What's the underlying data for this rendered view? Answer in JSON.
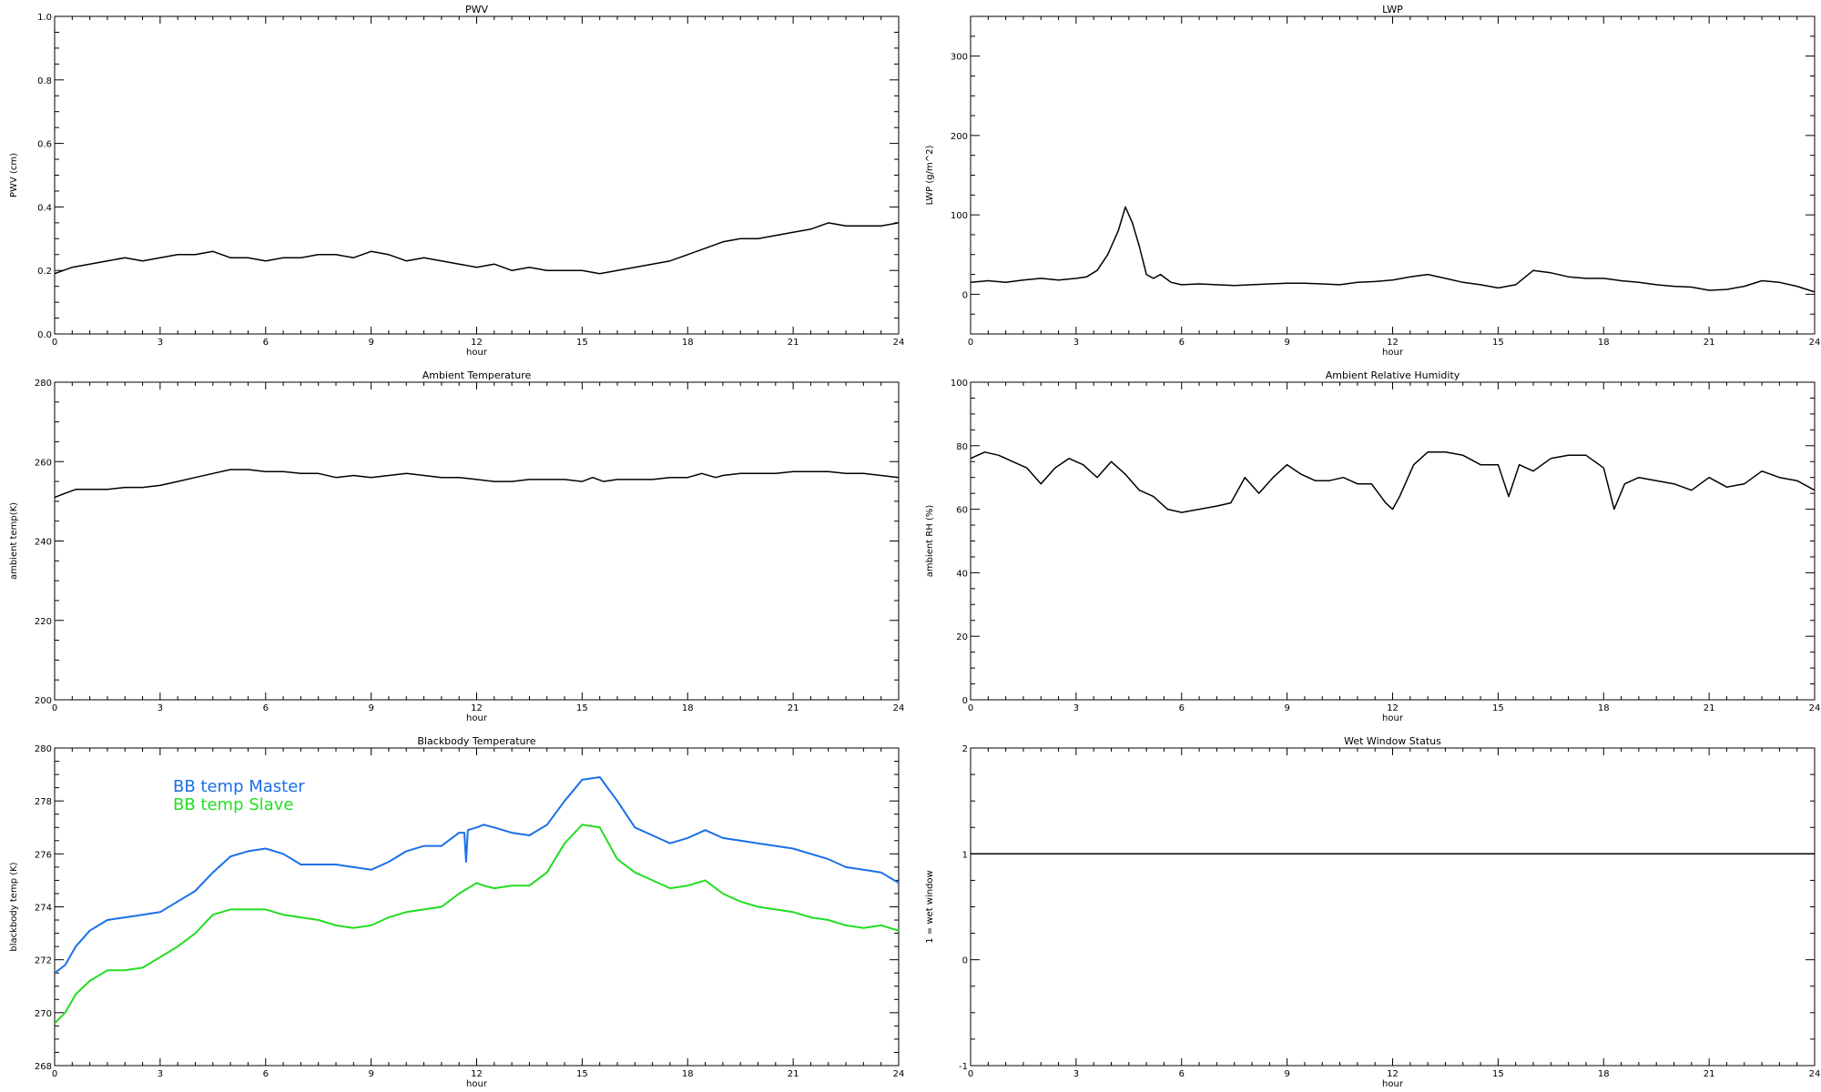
{
  "chart_data": [
    {
      "id": "pwv",
      "type": "line",
      "title": "PWV",
      "xlabel": "hour",
      "ylabel": "PWV (cm)",
      "xlim": [
        0,
        24
      ],
      "ylim": [
        0.0,
        1.0
      ],
      "xticks": [
        "0",
        "3",
        "6",
        "9",
        "12",
        "15",
        "18",
        "21",
        "24"
      ],
      "yticks": [
        "0.0",
        "0.2",
        "0.4",
        "0.6",
        "0.8",
        "1.0"
      ],
      "series": [
        {
          "color": "#000000",
          "x": [
            0,
            0.5,
            1,
            1.5,
            2,
            2.5,
            3,
            3.5,
            4,
            4.5,
            5,
            5.5,
            6,
            6.5,
            7,
            7.5,
            8,
            8.5,
            9,
            9.5,
            10,
            10.5,
            11,
            11.5,
            12,
            12.5,
            13,
            13.5,
            14,
            14.5,
            15,
            15.5,
            16,
            16.5,
            17,
            17.5,
            18,
            18.5,
            19,
            19.5,
            20,
            20.5,
            21,
            21.5,
            22,
            22.5,
            23,
            23.5,
            24
          ],
          "y": [
            0.19,
            0.21,
            0.22,
            0.23,
            0.24,
            0.23,
            0.24,
            0.25,
            0.25,
            0.26,
            0.24,
            0.24,
            0.23,
            0.24,
            0.24,
            0.25,
            0.25,
            0.24,
            0.26,
            0.25,
            0.23,
            0.24,
            0.23,
            0.22,
            0.21,
            0.22,
            0.2,
            0.21,
            0.2,
            0.2,
            0.2,
            0.19,
            0.2,
            0.21,
            0.22,
            0.23,
            0.25,
            0.27,
            0.29,
            0.3,
            0.3,
            0.31,
            0.32,
            0.33,
            0.35,
            0.34,
            0.34,
            0.34,
            0.35
          ]
        }
      ]
    },
    {
      "id": "lwp",
      "type": "line",
      "title": "LWP",
      "xlabel": "hour",
      "ylabel": "LWP (g/m^2)",
      "xlim": [
        0,
        24
      ],
      "ylim": [
        -50,
        350
      ],
      "xticks": [
        "0",
        "3",
        "6",
        "9",
        "12",
        "15",
        "18",
        "21",
        "24"
      ],
      "yticks": [
        "0",
        "100",
        "200",
        "300"
      ],
      "series": [
        {
          "color": "#000000",
          "x": [
            0,
            0.5,
            1,
            1.5,
            2,
            2.5,
            3,
            3.3,
            3.6,
            3.9,
            4.2,
            4.4,
            4.6,
            4.8,
            5.0,
            5.2,
            5.4,
            5.7,
            6,
            6.5,
            7,
            7.5,
            8,
            8.5,
            9,
            9.5,
            10,
            10.5,
            11,
            11.5,
            12,
            12.5,
            13,
            13.5,
            14,
            14.5,
            15,
            15.5,
            16,
            16.5,
            17,
            17.5,
            18,
            18.5,
            19,
            19.5,
            20,
            20.5,
            21,
            21.5,
            22,
            22.5,
            23,
            23.5,
            24
          ],
          "y": [
            15,
            17,
            15,
            18,
            20,
            18,
            20,
            22,
            30,
            50,
            80,
            110,
            90,
            60,
            25,
            20,
            25,
            15,
            12,
            13,
            12,
            11,
            12,
            13,
            14,
            14,
            13,
            12,
            15,
            16,
            18,
            22,
            25,
            20,
            15,
            12,
            8,
            12,
            30,
            27,
            22,
            20,
            20,
            17,
            15,
            12,
            10,
            9,
            5,
            6,
            10,
            17,
            15,
            10,
            3
          ]
        }
      ]
    },
    {
      "id": "ambient-temp",
      "type": "line",
      "title": "Ambient Temperature",
      "xlabel": "hour",
      "ylabel": "ambient temp(K)",
      "xlim": [
        0,
        24
      ],
      "ylim": [
        200,
        280
      ],
      "xticks": [
        "0",
        "3",
        "6",
        "9",
        "12",
        "15",
        "18",
        "21",
        "24"
      ],
      "yticks": [
        "200",
        "220",
        "240",
        "260",
        "280"
      ],
      "series": [
        {
          "color": "#000000",
          "x": [
            0,
            0.3,
            0.6,
            1,
            1.5,
            2,
            2.5,
            3,
            3.5,
            4,
            4.5,
            5,
            5.5,
            6,
            6.5,
            7,
            7.5,
            8,
            8.5,
            9,
            9.5,
            10,
            10.5,
            11,
            11.5,
            12,
            12.5,
            13,
            13.5,
            14,
            14.5,
            15,
            15.3,
            15.6,
            16,
            16.5,
            17,
            17.5,
            18,
            18.4,
            18.8,
            19,
            19.5,
            20,
            20.5,
            21,
            21.5,
            22,
            22.5,
            23,
            23.5,
            24
          ],
          "y": [
            251,
            252,
            253,
            253,
            253,
            253.5,
            253.5,
            254,
            255,
            256,
            257,
            258,
            258,
            257.5,
            257.5,
            257,
            257,
            256,
            256.5,
            256,
            256.5,
            257,
            256.5,
            256,
            256,
            255.5,
            255,
            255,
            255.5,
            255.5,
            255.5,
            255,
            256,
            255,
            255.5,
            255.5,
            255.5,
            256,
            256,
            257,
            256,
            256.5,
            257,
            257,
            257,
            257.5,
            257.5,
            257.5,
            257,
            257,
            256.5,
            256
          ]
        }
      ]
    },
    {
      "id": "ambient-rh",
      "type": "line",
      "title": "Ambient Relative Humidity",
      "xlabel": "hour",
      "ylabel": "ambient RH (%)",
      "xlim": [
        0,
        24
      ],
      "ylim": [
        0,
        100
      ],
      "xticks": [
        "0",
        "3",
        "6",
        "9",
        "12",
        "15",
        "18",
        "21",
        "24"
      ],
      "yticks": [
        "0",
        "20",
        "40",
        "60",
        "80",
        "100"
      ],
      "series": [
        {
          "color": "#000000",
          "x": [
            0,
            0.4,
            0.8,
            1.2,
            1.6,
            2.0,
            2.4,
            2.8,
            3.2,
            3.6,
            4.0,
            4.4,
            4.8,
            5.2,
            5.6,
            6.0,
            6.5,
            7.0,
            7.4,
            7.8,
            8.2,
            8.6,
            9.0,
            9.4,
            9.8,
            10.2,
            10.6,
            11.0,
            11.4,
            11.8,
            12.0,
            12.2,
            12.6,
            13.0,
            13.5,
            14.0,
            14.5,
            15.0,
            15.3,
            15.6,
            16.0,
            16.5,
            17.0,
            17.5,
            18.0,
            18.3,
            18.6,
            19.0,
            19.5,
            20.0,
            20.5,
            21.0,
            21.5,
            22.0,
            22.5,
            23.0,
            23.5,
            24.0
          ],
          "y": [
            76,
            78,
            77,
            75,
            73,
            68,
            73,
            76,
            74,
            70,
            75,
            71,
            66,
            64,
            60,
            59,
            60,
            61,
            62,
            70,
            65,
            70,
            74,
            71,
            69,
            69,
            70,
            68,
            68,
            62,
            60,
            64,
            74,
            78,
            78,
            77,
            74,
            74,
            64,
            74,
            72,
            76,
            77,
            77,
            73,
            60,
            68,
            70,
            69,
            68,
            66,
            70,
            67,
            68,
            72,
            70,
            69,
            66
          ]
        }
      ]
    },
    {
      "id": "bb-temp",
      "type": "line",
      "title": "Blackbody Temperature",
      "xlabel": "hour",
      "ylabel": "blackbody temp (K)",
      "xlim": [
        0,
        24
      ],
      "ylim": [
        268,
        280
      ],
      "xticks": [
        "0",
        "3",
        "6",
        "9",
        "12",
        "15",
        "18",
        "21",
        "24"
      ],
      "yticks": [
        "268",
        "270",
        "272",
        "274",
        "276",
        "278",
        "280"
      ],
      "legend": {
        "placement": "top-left"
      },
      "series": [
        {
          "name": "BB temp Master",
          "color": "#1a6fe8",
          "x": [
            0,
            0.3,
            0.6,
            1,
            1.5,
            2,
            2.5,
            3,
            3.5,
            4,
            4.5,
            5,
            5.5,
            6,
            6.5,
            7,
            7.5,
            8,
            8.5,
            9,
            9.5,
            10,
            10.5,
            11,
            11.5,
            11.65,
            11.7,
            11.75,
            12,
            12.2,
            12.5,
            13,
            13.5,
            14,
            14.5,
            15,
            15.5,
            16,
            16.5,
            17,
            17.5,
            18,
            18.5,
            19,
            19.5,
            20,
            20.5,
            21,
            21.5,
            22,
            22.5,
            23,
            23.5,
            24
          ],
          "y": [
            271.5,
            271.8,
            272.5,
            273.1,
            273.5,
            273.6,
            273.7,
            273.8,
            274.2,
            274.6,
            275.3,
            275.9,
            276.1,
            276.2,
            276.0,
            275.6,
            275.6,
            275.6,
            275.5,
            275.4,
            275.7,
            276.1,
            276.3,
            276.3,
            276.8,
            276.8,
            275.7,
            276.9,
            277.0,
            277.1,
            277.0,
            276.8,
            276.7,
            277.1,
            278.0,
            278.8,
            278.9,
            278.0,
            277.0,
            276.7,
            276.4,
            276.6,
            276.9,
            276.6,
            276.5,
            276.4,
            276.3,
            276.2,
            276.0,
            275.8,
            275.5,
            275.4,
            275.3,
            274.9
          ]
        },
        {
          "name": "BB temp Slave",
          "color": "#22dd22",
          "x": [
            0,
            0.3,
            0.6,
            1,
            1.5,
            2,
            2.5,
            3,
            3.5,
            4,
            4.5,
            5,
            5.5,
            6,
            6.5,
            7,
            7.5,
            8,
            8.5,
            9,
            9.5,
            10,
            10.5,
            11,
            11.5,
            12,
            12.2,
            12.5,
            13,
            13.5,
            14,
            14.5,
            15,
            15.5,
            16,
            16.5,
            17,
            17.5,
            18,
            18.5,
            19,
            19.5,
            20,
            20.5,
            21,
            21.5,
            22,
            22.5,
            23,
            23.5,
            24
          ],
          "y": [
            269.6,
            270.0,
            270.7,
            271.2,
            271.6,
            271.6,
            271.7,
            272.1,
            272.5,
            273.0,
            273.7,
            273.9,
            273.9,
            273.9,
            273.7,
            273.6,
            273.5,
            273.3,
            273.2,
            273.3,
            273.6,
            273.8,
            273.9,
            274.0,
            274.5,
            274.9,
            274.8,
            274.7,
            274.8,
            274.8,
            275.3,
            276.4,
            277.1,
            277.0,
            275.8,
            275.3,
            275.0,
            274.7,
            274.8,
            275.0,
            274.5,
            274.2,
            274.0,
            273.9,
            273.8,
            273.6,
            273.5,
            273.3,
            273.2,
            273.3,
            273.1
          ]
        }
      ]
    },
    {
      "id": "wet-window",
      "type": "line",
      "title": "Wet Window Status",
      "xlabel": "hour",
      "ylabel": "1 = wet window",
      "xlim": [
        0,
        24
      ],
      "ylim": [
        -1,
        2
      ],
      "xticks": [
        "0",
        "3",
        "6",
        "9",
        "12",
        "15",
        "18",
        "21",
        "24"
      ],
      "yticks": [
        "-1",
        "0",
        "1",
        "2"
      ],
      "series": [
        {
          "color": "#000000",
          "x": [
            0,
            24
          ],
          "y": [
            1,
            1
          ]
        }
      ]
    }
  ]
}
